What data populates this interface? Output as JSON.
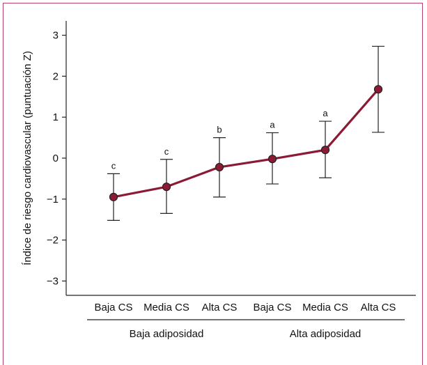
{
  "chart_data": {
    "type": "line",
    "ylabel": "Índice de riesgo cardiovascular (puntuación Z)",
    "categories": [
      "Baja CS",
      "Media CS",
      "Alta CS",
      "Baja CS",
      "Media CS",
      "Alta CS"
    ],
    "groups": [
      {
        "label": "Baja adiposidad",
        "from": 0,
        "to": 2
      },
      {
        "label": "Alta adiposidad",
        "from": 3,
        "to": 5
      }
    ],
    "yticks": [
      3,
      2,
      1,
      0,
      -1,
      -2,
      -3
    ],
    "ytick_labels": [
      "3",
      "2",
      "1",
      "0",
      "−1",
      "−2",
      "−3"
    ],
    "ylim": [
      -3.35,
      3.35
    ],
    "series": [
      {
        "values": [
          -0.95,
          -0.7,
          -0.22,
          -0.02,
          0.2,
          1.68
        ],
        "error_low": [
          -1.52,
          -1.35,
          -0.95,
          -0.63,
          -0.48,
          0.63
        ],
        "error_high": [
          -0.38,
          -0.03,
          0.5,
          0.62,
          0.9,
          2.73
        ],
        "annotations": [
          "c",
          "c",
          "b",
          "a",
          "a",
          ""
        ]
      }
    ],
    "colors": {
      "line": "#8b1a35",
      "marker": "#8b1a35",
      "error_bar": "#222222",
      "frame": "#b8426a"
    },
    "grid": false
  }
}
